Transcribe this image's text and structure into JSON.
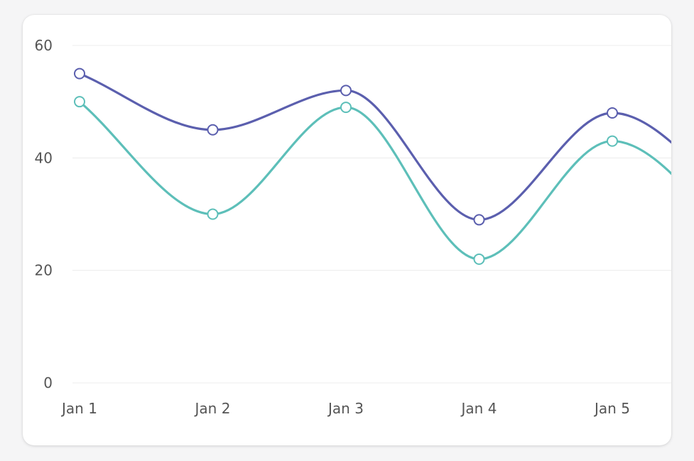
{
  "chart_data": {
    "type": "line",
    "categories": [
      "Jan 1",
      "Jan 2",
      "Jan 3",
      "Jan 4",
      "Jan 5"
    ],
    "series": [
      {
        "values": [
          55,
          45,
          52,
          29,
          48
        ],
        "color": "#5b5fae"
      },
      {
        "values": [
          50,
          30,
          49,
          22,
          43
        ],
        "color": "#5dbfb9"
      }
    ],
    "ylim": [
      0,
      60
    ],
    "yticks": [
      0,
      20,
      40,
      60
    ],
    "ytick_labels": [
      "0",
      "20",
      "40",
      "60"
    ],
    "grid": true,
    "curve": "smooth",
    "colors": {
      "grid": "#ececec",
      "axis_text": "#555555",
      "marker_fill": "#ffffff"
    }
  }
}
